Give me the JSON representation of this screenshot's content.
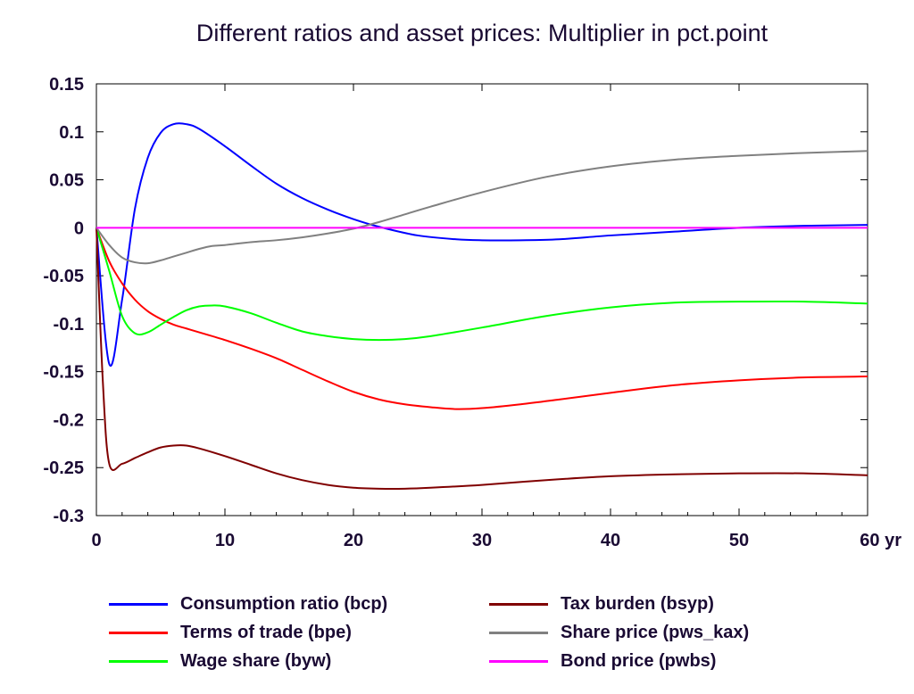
{
  "chart_data": {
    "type": "line",
    "title": "Different ratios and asset prices: Multiplier in pct.point",
    "xlabel": "",
    "ylabel": "",
    "x_unit_label": "yr",
    "xlim": [
      0,
      60
    ],
    "ylim": [
      -0.3,
      0.15
    ],
    "x_ticks": [
      0,
      10,
      20,
      30,
      40,
      50,
      60
    ],
    "x_tick_labels": [
      "0",
      "10",
      "20",
      "30",
      "40",
      "50",
      "60 yr"
    ],
    "y_ticks": [
      0.15,
      0.1,
      0.05,
      0,
      -0.05,
      -0.1,
      -0.15,
      -0.2,
      -0.25,
      -0.3
    ],
    "y_tick_labels": [
      "0.15",
      "0.1",
      "0.05",
      "0",
      "-0.05",
      "-0.1",
      "-0.15",
      "-0.2",
      "-0.25",
      "-0.3"
    ],
    "grid": false,
    "legend_position": "bottom",
    "series": [
      {
        "name": "Consumption ratio (bcp)",
        "color": "#0000ff",
        "x": [
          0,
          1,
          2,
          3,
          4,
          5,
          6,
          7,
          8,
          10,
          12,
          14,
          16,
          18,
          20,
          22,
          25,
          28,
          30,
          33,
          36,
          40,
          45,
          50,
          55,
          60
        ],
        "y": [
          0,
          -0.142,
          -0.075,
          0.02,
          0.073,
          0.099,
          0.108,
          0.108,
          0.103,
          0.085,
          0.065,
          0.046,
          0.031,
          0.019,
          0.009,
          0.001,
          -0.008,
          -0.012,
          -0.013,
          -0.013,
          -0.012,
          -0.008,
          -0.004,
          0.0,
          0.002,
          0.003
        ]
      },
      {
        "name": "Terms of trade (bpe)",
        "color": "#ff0000",
        "x": [
          0,
          1,
          2,
          3,
          4,
          5,
          6,
          7,
          8,
          10,
          12,
          14,
          16,
          18,
          20,
          22,
          24,
          26,
          28,
          30,
          33,
          36,
          40,
          45,
          50,
          55,
          60
        ],
        "y": [
          0,
          -0.035,
          -0.058,
          -0.075,
          -0.087,
          -0.095,
          -0.101,
          -0.105,
          -0.109,
          -0.117,
          -0.126,
          -0.136,
          -0.148,
          -0.16,
          -0.171,
          -0.179,
          -0.184,
          -0.187,
          -0.189,
          -0.188,
          -0.184,
          -0.179,
          -0.172,
          -0.164,
          -0.159,
          -0.156,
          -0.155
        ]
      },
      {
        "name": "Wage share (byw)",
        "color": "#00ff00",
        "x": [
          0,
          1,
          2,
          3,
          4,
          5,
          6,
          7,
          8,
          9,
          10,
          12,
          14,
          16,
          18,
          20,
          22,
          24,
          26,
          30,
          35,
          40,
          45,
          50,
          55,
          60
        ],
        "y": [
          0,
          -0.045,
          -0.092,
          -0.11,
          -0.109,
          -0.101,
          -0.093,
          -0.086,
          -0.082,
          -0.081,
          -0.082,
          -0.089,
          -0.099,
          -0.108,
          -0.113,
          -0.116,
          -0.117,
          -0.116,
          -0.113,
          -0.104,
          -0.092,
          -0.083,
          -0.078,
          -0.077,
          -0.077,
          -0.079
        ]
      },
      {
        "name": "Tax burden (bsyp)",
        "color": "#800000",
        "x": [
          0,
          0.5,
          1,
          2,
          3,
          4,
          5,
          6,
          7,
          8,
          10,
          12,
          14,
          16,
          18,
          20,
          22,
          24,
          26,
          30,
          35,
          40,
          45,
          50,
          55,
          60
        ],
        "y": [
          0,
          -0.16,
          -0.246,
          -0.246,
          -0.24,
          -0.234,
          -0.229,
          -0.227,
          -0.227,
          -0.23,
          -0.238,
          -0.247,
          -0.256,
          -0.263,
          -0.268,
          -0.271,
          -0.272,
          -0.272,
          -0.271,
          -0.268,
          -0.263,
          -0.259,
          -0.257,
          -0.256,
          -0.256,
          -0.258
        ]
      },
      {
        "name": "Share price (pws_kax)",
        "color": "#808080",
        "x": [
          0,
          1,
          2,
          3,
          4,
          5,
          6,
          7,
          8,
          9,
          10,
          12,
          14,
          16,
          18,
          20,
          22,
          24,
          26,
          30,
          35,
          40,
          45,
          50,
          55,
          60
        ],
        "y": [
          0,
          -0.018,
          -0.031,
          -0.036,
          -0.037,
          -0.034,
          -0.03,
          -0.026,
          -0.022,
          -0.019,
          -0.018,
          -0.015,
          -0.013,
          -0.01,
          -0.006,
          -0.001,
          0.006,
          0.014,
          0.022,
          0.037,
          0.053,
          0.064,
          0.071,
          0.075,
          0.078,
          0.08
        ]
      },
      {
        "name": "Bond price (pwbs)",
        "color": "#ff00ff",
        "x": [
          0,
          60
        ],
        "y": [
          0.0,
          0.0
        ]
      }
    ]
  }
}
